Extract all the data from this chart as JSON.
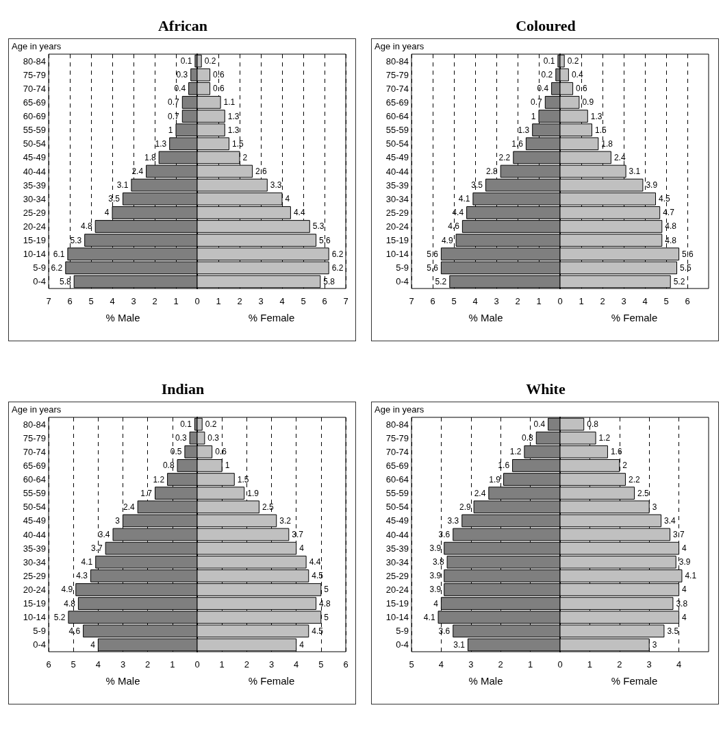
{
  "chart_data": [
    {
      "type": "bar",
      "title": "African",
      "ylabel": "Age in years",
      "orientation": "horizontal",
      "grid": "x",
      "categories": [
        "80-84",
        "75-79",
        "70-74",
        "65-69",
        "60-69",
        "55-59",
        "50-54",
        "45-49",
        "40-44",
        "35-39",
        "30-34",
        "25-29",
        "20-24",
        "15-19",
        "10-14",
        "5-9",
        "0-4"
      ],
      "series": [
        {
          "color": "#7f7f7f",
          "values": [
            0.1,
            0.3,
            0.4,
            0.7,
            0.7,
            1,
            1.3,
            1.8,
            2.4,
            3.1,
            3.5,
            4,
            4.8,
            5.3,
            6.1,
            6.2,
            5.8
          ],
          "base": [
            -0.1,
            -0.3,
            -0.4,
            -0.7,
            -0.7,
            -1,
            -1.3,
            -1.8,
            -2.4,
            -3.1,
            -3.5,
            -4,
            -4.8,
            -5.3,
            -6.1,
            -6.2,
            -5.8
          ],
          "value_labels": [
            "0.1",
            "0.3",
            "0.4",
            "0.7",
            "0.7",
            "1",
            "1.3",
            "1.8",
            "2.4",
            "3.1",
            "3.5",
            "4",
            "4.8",
            "5.3",
            "6.1",
            "6.2",
            "5.8"
          ]
        },
        {
          "color": "#c0c0c0",
          "values": [
            0.2,
            0.6,
            0.6,
            1.1,
            1.3,
            1.3,
            1.5,
            2,
            2.6,
            3.3,
            4,
            4.4,
            5.3,
            5.6,
            6.2,
            6.2,
            5.8
          ],
          "value_labels": [
            "0.2",
            "0.6",
            "0.6",
            "1.1",
            "1.3",
            "1.3",
            "1.5",
            "2",
            "2.6",
            "3.3",
            "4",
            "4.4",
            "5.3",
            "5.6",
            "6.2",
            "6.2",
            "5.8"
          ]
        }
      ],
      "xlim": [
        -7,
        7
      ],
      "xticks": [
        {
          "value": -7,
          "label": "7"
        },
        {
          "value": -6,
          "label": "6"
        },
        {
          "value": -5,
          "label": "5"
        },
        {
          "value": -4,
          "label": "4"
        },
        {
          "value": -3,
          "label": "3"
        },
        {
          "value": -2,
          "label": "2"
        },
        {
          "value": -1,
          "label": "1"
        },
        0,
        1,
        2,
        3,
        4,
        5,
        6,
        7
      ],
      "annotations": [
        "% Male",
        "% Female"
      ]
    },
    {
      "type": "bar",
      "title": "Coloured",
      "ylabel": "Age in years",
      "orientation": "horizontal",
      "grid": "x",
      "categories": [
        "80-84",
        "75-79",
        "70-74",
        "65-69",
        "60-64",
        "55-59",
        "50-54",
        "45-49",
        "40-44",
        "35-39",
        "30-34",
        "25-29",
        "20-24",
        "15-19",
        "10-14",
        "5-9",
        "0-4"
      ],
      "series": [
        {
          "color": "#7f7f7f",
          "values": [
            0.1,
            0.2,
            0.4,
            0.7,
            1,
            1.3,
            1.6,
            2.2,
            2.8,
            3.5,
            4.1,
            4.4,
            4.6,
            4.9,
            5.6,
            5.6,
            5.2
          ],
          "base": [
            -0.1,
            -0.2,
            -0.4,
            -0.7,
            -1,
            -1.3,
            -1.6,
            -2.2,
            -2.8,
            -3.5,
            -4.1,
            -4.4,
            -4.6,
            -4.9,
            -5.6,
            -5.6,
            -5.2
          ],
          "value_labels": [
            "0.1",
            "0.2",
            "0.4",
            "0.7",
            "1",
            "1.3",
            "1.6",
            "2.2",
            "2.8",
            "3.5",
            "4.1",
            "4.4",
            "4.6",
            "4.9",
            "5.6",
            "5.6",
            "5.2"
          ]
        },
        {
          "color": "#c0c0c0",
          "values": [
            0.2,
            0.4,
            0.6,
            0.9,
            1.3,
            1.5,
            1.8,
            2.4,
            3.1,
            3.9,
            4.5,
            4.7,
            4.8,
            4.8,
            5.6,
            5.5,
            5.2
          ],
          "value_labels": [
            "0.2",
            "0.4",
            "0.6",
            "0.9",
            "1.3",
            "1.5",
            "1.8",
            "2.4",
            "3.1",
            "3.9",
            "4.5",
            "4.7",
            "4.8",
            "4.8",
            "5.6",
            "5.5",
            "5.2"
          ]
        }
      ],
      "xlim": [
        -7,
        7
      ],
      "xticks": [
        {
          "value": -7,
          "label": "7"
        },
        {
          "value": -6,
          "label": "6"
        },
        {
          "value": -5,
          "label": "5"
        },
        {
          "value": -4,
          "label": "4"
        },
        {
          "value": -3,
          "label": "3"
        },
        {
          "value": -2,
          "label": "2"
        },
        {
          "value": -1,
          "label": "1"
        },
        0,
        1,
        2,
        3,
        4,
        5,
        6
      ],
      "annotations": [
        "% Male",
        "% Female"
      ]
    },
    {
      "type": "bar",
      "title": "Indian",
      "ylabel": "Age in years",
      "orientation": "horizontal",
      "grid": "x",
      "categories": [
        "80-84",
        "75-79",
        "70-74",
        "65-69",
        "60-64",
        "55-59",
        "50-54",
        "45-49",
        "40-44",
        "35-39",
        "30-34",
        "25-29",
        "20-24",
        "15-19",
        "10-14",
        "5-9",
        "0-4"
      ],
      "series": [
        {
          "color": "#7f7f7f",
          "values": [
            0.1,
            0.3,
            0.5,
            0.8,
            1.2,
            1.7,
            2.4,
            3,
            3.4,
            3.7,
            4.1,
            4.3,
            4.9,
            4.8,
            5.2,
            4.6,
            4
          ],
          "base": [
            -0.1,
            -0.3,
            -0.5,
            -0.8,
            -1.2,
            -1.7,
            -2.4,
            -3,
            -3.4,
            -3.7,
            -4.1,
            -4.3,
            -4.9,
            -4.8,
            -5.2,
            -4.6,
            -4
          ],
          "value_labels": [
            "0.1",
            "0.3",
            "0.5",
            "0.8",
            "1.2",
            "1.7",
            "2.4",
            "3",
            "3.4",
            "3.7",
            "4.1",
            "4.3",
            "4.9",
            "4.8",
            "5.2",
            "4.6",
            "4"
          ]
        },
        {
          "color": "#c0c0c0",
          "values": [
            0.2,
            0.3,
            0.6,
            1,
            1.5,
            1.9,
            2.5,
            3.2,
            3.7,
            4,
            4.4,
            4.5,
            5,
            4.8,
            5,
            4.5,
            4
          ],
          "value_labels": [
            "0.2",
            "0.3",
            "0.6",
            "1",
            "1.5",
            "1.9",
            "2.5",
            "3.2",
            "3.7",
            "4",
            "4.4",
            "4.5",
            "5",
            "4.8",
            "5",
            "4.5",
            "4"
          ]
        }
      ],
      "xlim": [
        -6,
        6
      ],
      "xticks": [
        {
          "value": -6,
          "label": "6"
        },
        {
          "value": -5,
          "label": "5"
        },
        {
          "value": -4,
          "label": "4"
        },
        {
          "value": -3,
          "label": "3"
        },
        {
          "value": -2,
          "label": "2"
        },
        {
          "value": -1,
          "label": "1"
        },
        0,
        1,
        2,
        3,
        4,
        5,
        6
      ],
      "annotations": [
        "% Male",
        "% Female"
      ]
    },
    {
      "type": "bar",
      "title": "White",
      "ylabel": "Age in years",
      "orientation": "horizontal",
      "grid": "x",
      "categories": [
        "80-84",
        "75-79",
        "70-74",
        "65-69",
        "60-64",
        "55-59",
        "50-54",
        "45-49",
        "40-44",
        "35-39",
        "30-34",
        "25-29",
        "20-24",
        "15-19",
        "10-14",
        "5-9",
        "0-4"
      ],
      "series": [
        {
          "color": "#7f7f7f",
          "values": [
            0.4,
            0.8,
            1.2,
            1.6,
            1.9,
            2.4,
            2.9,
            3.3,
            3.6,
            3.9,
            3.8,
            3.9,
            3.9,
            4,
            4.1,
            3.6,
            3.1
          ],
          "base": [
            -0.4,
            -0.8,
            -1.2,
            -1.6,
            -1.9,
            -2.4,
            -2.9,
            -3.3,
            -3.6,
            -3.9,
            -3.8,
            -3.9,
            -3.9,
            -4,
            -4.1,
            -3.6,
            -3.1
          ],
          "value_labels": [
            "0.4",
            "0.8",
            "1.2",
            "1.6",
            "1.9",
            "2.4",
            "2.9",
            "3.3",
            "3.6",
            "3.9",
            "3.8",
            "3.9",
            "3.9",
            "4",
            "4.1",
            "3.6",
            "3.1"
          ]
        },
        {
          "color": "#c0c0c0",
          "values": [
            0.8,
            1.2,
            1.6,
            2,
            2.2,
            2.5,
            3,
            3.4,
            3.7,
            4,
            3.9,
            4.1,
            4,
            3.8,
            4,
            3.5,
            3
          ],
          "value_labels": [
            "0.8",
            "1.2",
            "1.6",
            "2",
            "2.2",
            "2.5",
            "3",
            "3.4",
            "3.7",
            "4",
            "3.9",
            "4.1",
            "4",
            "3.8",
            "4",
            "3.5",
            "3"
          ]
        }
      ],
      "xlim": [
        -5,
        5
      ],
      "xticks": [
        {
          "value": -5,
          "label": "5"
        },
        {
          "value": -4,
          "label": "4"
        },
        {
          "value": -3,
          "label": "3"
        },
        {
          "value": -2,
          "label": "2"
        },
        {
          "value": -1,
          "label": "1"
        },
        0,
        1,
        2,
        3,
        4
      ],
      "annotations": [
        "% Male",
        "% Female"
      ]
    }
  ]
}
